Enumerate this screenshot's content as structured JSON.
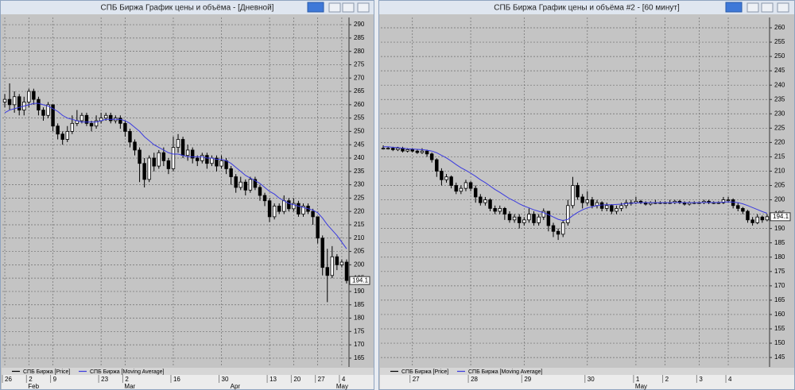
{
  "chart_data": [
    {
      "type": "candlestick",
      "title": "СПБ Биржа График цены и объёма - [Дневной]",
      "categories": [
        "26",
        null,
        null,
        null,
        null,
        "2",
        null,
        null,
        null,
        null,
        "9",
        null,
        null,
        null,
        null,
        null,
        null,
        null,
        null,
        null,
        "23",
        null,
        null,
        null,
        null,
        "2",
        null,
        null,
        null,
        null,
        null,
        null,
        null,
        null,
        null,
        "16",
        null,
        null,
        null,
        null,
        null,
        null,
        null,
        null,
        null,
        "30",
        null,
        null,
        null,
        null,
        null,
        null,
        null,
        null,
        null,
        "13",
        null,
        null,
        null,
        null,
        "20",
        null,
        null,
        null,
        null,
        "27",
        null,
        null,
        null,
        null,
        "4",
        null
      ],
      "months": [
        null,
        null,
        null,
        null,
        null,
        "Feb",
        null,
        null,
        null,
        null,
        null,
        null,
        null,
        null,
        null,
        null,
        null,
        null,
        null,
        null,
        null,
        null,
        null,
        null,
        null,
        "Mar",
        null,
        null,
        null,
        null,
        null,
        null,
        null,
        null,
        null,
        null,
        null,
        null,
        null,
        null,
        null,
        null,
        null,
        null,
        null,
        null,
        null,
        "Apr",
        null,
        null,
        null,
        null,
        null,
        null,
        null,
        null,
        null,
        null,
        null,
        null,
        null,
        null,
        null,
        null,
        null,
        null,
        null,
        null,
        null,
        "May",
        null,
        null
      ],
      "series": [
        {
          "name": "СПБ Биржа [Price]",
          "color": "#000000",
          "open": [
            261,
            262,
            260,
            263,
            258,
            261,
            265,
            262,
            258,
            256,
            260,
            252,
            249,
            247,
            250,
            253,
            254,
            256,
            253,
            252,
            254,
            255,
            256,
            254,
            255,
            253,
            250,
            246,
            243,
            238,
            232,
            240,
            237,
            242,
            239,
            236,
            244,
            247,
            241,
            243,
            240,
            239,
            241,
            238,
            240,
            237,
            239,
            236,
            233,
            229,
            231,
            228,
            232,
            229,
            226,
            224,
            218,
            222,
            220,
            224,
            221,
            223,
            219,
            222,
            220,
            218,
            210,
            199,
            196,
            203,
            200,
            201
          ],
          "high": [
            264,
            268,
            265,
            264,
            263,
            266,
            266,
            263,
            259,
            261,
            260,
            253,
            250,
            252,
            256,
            258,
            257,
            257,
            254,
            256,
            257,
            257,
            257,
            256,
            256,
            254,
            251,
            247,
            244,
            240,
            241,
            242,
            243,
            244,
            240,
            248,
            249,
            248,
            245,
            244,
            241,
            242,
            242,
            241,
            241,
            241,
            240,
            237,
            234,
            233,
            232,
            233,
            233,
            230,
            227,
            225,
            223,
            223,
            226,
            225,
            225,
            224,
            223,
            223,
            221,
            218,
            211,
            206,
            207,
            204,
            202,
            202
          ],
          "low": [
            259,
            258,
            257,
            256,
            256,
            259,
            260,
            256,
            254,
            255,
            250,
            247,
            245,
            246,
            249,
            252,
            253,
            252,
            250,
            251,
            253,
            254,
            253,
            253,
            251,
            248,
            244,
            241,
            231,
            229,
            231,
            235,
            236,
            237,
            234,
            235,
            242,
            240,
            239,
            238,
            237,
            238,
            236,
            237,
            235,
            236,
            234,
            230,
            227,
            228,
            226,
            227,
            228,
            224,
            222,
            216,
            217,
            219,
            219,
            220,
            220,
            218,
            218,
            219,
            215,
            208,
            196,
            186,
            195,
            198,
            199,
            193
          ],
          "close": [
            262,
            260,
            263,
            258,
            261,
            265,
            262,
            258,
            256,
            260,
            252,
            249,
            247,
            250,
            253,
            254,
            256,
            253,
            252,
            254,
            255,
            256,
            254,
            255,
            253,
            250,
            246,
            243,
            238,
            232,
            240,
            237,
            242,
            239,
            236,
            244,
            247,
            241,
            243,
            240,
            239,
            241,
            238,
            240,
            237,
            239,
            236,
            233,
            229,
            231,
            228,
            232,
            229,
            226,
            224,
            218,
            222,
            220,
            224,
            221,
            223,
            219,
            222,
            220,
            218,
            210,
            199,
            196,
            203,
            200,
            201,
            194.1
          ]
        },
        {
          "name": "СПБ Биржа [Moving Average]",
          "color": "#3a3adf",
          "values": [
            257,
            258,
            258.5,
            259,
            259.5,
            260,
            260.5,
            260.5,
            260,
            259.5,
            258.5,
            257.5,
            256,
            255,
            254.5,
            254,
            253.5,
            253.5,
            253.5,
            253.5,
            254,
            254.5,
            254.5,
            254.5,
            254.5,
            254,
            253,
            251.5,
            250,
            248,
            246.5,
            245,
            244,
            243,
            242,
            241.5,
            241.5,
            241,
            240.5,
            240.5,
            240.5,
            240.5,
            240,
            240,
            239.5,
            239.5,
            239,
            238,
            236.5,
            235,
            233.5,
            232.5,
            231.5,
            230.5,
            229,
            227.5,
            226.5,
            225,
            224,
            223,
            222.5,
            222,
            221.5,
            221,
            220.5,
            219.5,
            217.5,
            215,
            213,
            211,
            208.5,
            206
          ]
        }
      ],
      "ylim": [
        161.7,
        292.7
      ],
      "yticks": [
        165,
        170,
        175,
        180,
        185,
        190,
        195,
        200,
        205,
        210,
        215,
        220,
        225,
        230,
        235,
        240,
        245,
        250,
        255,
        260,
        265,
        270,
        275,
        280,
        285,
        290
      ],
      "grid": true
    },
    {
      "type": "candlestick",
      "title": "СПБ Биржа График цены и объёма #2 - [60 минут]",
      "categories": [
        null,
        null,
        null,
        null,
        null,
        null,
        "27",
        null,
        null,
        null,
        null,
        null,
        null,
        null,
        null,
        null,
        null,
        null,
        "28",
        null,
        null,
        null,
        null,
        null,
        null,
        null,
        null,
        null,
        null,
        "29",
        null,
        null,
        null,
        null,
        null,
        null,
        null,
        null,
        null,
        null,
        null,
        null,
        "30",
        null,
        null,
        null,
        null,
        null,
        null,
        null,
        null,
        null,
        "1",
        null,
        null,
        null,
        null,
        null,
        "2",
        null,
        null,
        null,
        null,
        null,
        null,
        "3",
        null,
        null,
        null,
        null,
        null,
        "4",
        null,
        null,
        null,
        null,
        null,
        null,
        null,
        null
      ],
      "months": [
        null,
        null,
        null,
        null,
        null,
        null,
        null,
        null,
        null,
        null,
        null,
        null,
        null,
        null,
        null,
        null,
        null,
        null,
        null,
        null,
        null,
        null,
        null,
        null,
        null,
        null,
        null,
        null,
        null,
        null,
        null,
        null,
        null,
        null,
        null,
        null,
        null,
        null,
        null,
        null,
        null,
        null,
        null,
        null,
        null,
        null,
        null,
        null,
        null,
        null,
        null,
        null,
        "May",
        null,
        null,
        null,
        null,
        null,
        null,
        null,
        null,
        null,
        null,
        null,
        null,
        null,
        null,
        null,
        null,
        null,
        null,
        null,
        null,
        null,
        null,
        null,
        null,
        null,
        null,
        null
      ],
      "series": [
        {
          "name": "СПБ Биржа [Price]",
          "color": "#000000",
          "open": [
            218,
            218,
            218,
            217.5,
            218,
            217,
            217.5,
            217,
            216.5,
            217,
            216,
            214,
            210,
            207,
            208,
            205,
            203,
            204,
            206,
            204,
            201,
            199,
            200,
            197,
            196,
            197,
            195,
            193,
            194,
            192,
            193,
            195,
            192,
            194,
            196,
            191,
            189,
            188,
            192,
            198,
            205,
            201,
            199,
            200,
            198,
            199,
            197,
            198,
            196,
            197,
            198,
            199,
            199,
            199.5,
            199,
            198.5,
            199,
            199,
            199,
            199,
            199,
            199.5,
            199,
            198.5,
            199,
            199,
            199,
            199.5,
            199,
            199,
            199,
            200,
            200,
            198,
            197,
            196,
            193,
            192,
            194,
            193
          ],
          "high": [
            219,
            218.5,
            218.5,
            218.5,
            218.5,
            218,
            218,
            217.5,
            218,
            217.5,
            216.5,
            214.5,
            211,
            209,
            208.5,
            206,
            205,
            207,
            206.5,
            205,
            202,
            201,
            200.5,
            198,
            198,
            197.5,
            196,
            195,
            195,
            194,
            197,
            196,
            195,
            197,
            196,
            192,
            190,
            193,
            200,
            208,
            206,
            202,
            203,
            201,
            200,
            199.5,
            199,
            198.5,
            198,
            199,
            200,
            200,
            201,
            200,
            199.5,
            199.5,
            200,
            199.5,
            199.5,
            200,
            200,
            200,
            199.5,
            199.5,
            199.5,
            199.5,
            200,
            200,
            199.5,
            199.5,
            201,
            201,
            200.5,
            199,
            197.5,
            196.5,
            194,
            195,
            194.5,
            195
          ],
          "low": [
            217.5,
            217.5,
            217,
            217,
            216.5,
            216.5,
            216.5,
            216,
            216,
            215,
            213,
            208,
            205,
            206,
            204,
            202,
            202,
            203,
            203,
            199,
            198,
            198,
            196,
            195,
            195,
            193,
            192,
            192,
            190,
            191,
            192,
            191,
            191,
            193,
            189,
            187,
            186,
            187,
            191,
            197,
            200,
            197,
            198,
            197,
            197,
            196,
            196,
            195,
            195,
            196,
            197,
            198,
            198.5,
            198.5,
            198,
            198,
            198.5,
            198.5,
            198.5,
            198.5,
            198.5,
            198.5,
            198,
            198,
            198.5,
            198.5,
            198.5,
            198.5,
            198.5,
            198.5,
            198.5,
            199,
            197,
            196,
            195,
            192,
            191,
            191.5,
            192,
            192.5
          ],
          "close": [
            218,
            218,
            217.5,
            218,
            217,
            217.5,
            217,
            216.5,
            217,
            216,
            214,
            210,
            207,
            208,
            205,
            203,
            204,
            206,
            204,
            201,
            199,
            200,
            197,
            196,
            197,
            195,
            193,
            194,
            192,
            193,
            195,
            192,
            194,
            196,
            191,
            189,
            188,
            192,
            198,
            205,
            201,
            199,
            200,
            198,
            199,
            197,
            198,
            196,
            197,
            198,
            199,
            199,
            199.5,
            199,
            198.5,
            199,
            199,
            199,
            199,
            199,
            199.5,
            199,
            198.5,
            199,
            199,
            199,
            199.5,
            199,
            199,
            199,
            200,
            200,
            198,
            197,
            196,
            193,
            192,
            194,
            193,
            194.1
          ]
        },
        {
          "name": "СПБ Биржа [Moving Average]",
          "color": "#3a3adf",
          "values": [
            218.5,
            218.5,
            218.3,
            218.2,
            218,
            217.8,
            217.7,
            217.6,
            217.5,
            217.3,
            217,
            216.4,
            215.5,
            214.6,
            213.5,
            212.3,
            211.2,
            210.3,
            209.3,
            208.2,
            207,
            206,
            204.8,
            203.6,
            202.6,
            201.5,
            200.4,
            199.6,
            198.6,
            197.8,
            197.2,
            196.5,
            196,
            195.5,
            194.8,
            194,
            193.2,
            192.8,
            193.2,
            194.5,
            195.6,
            196.5,
            197.2,
            197.6,
            198,
            198.2,
            198.3,
            198.3,
            198.4,
            198.5,
            198.7,
            198.8,
            198.9,
            199,
            199,
            199,
            199,
            199,
            199,
            199,
            199.1,
            199.1,
            199,
            199,
            199,
            199,
            199.1,
            199.1,
            199.1,
            199.1,
            199.2,
            199.3,
            199.2,
            199,
            198.6,
            198,
            197.3,
            196.6,
            195.9,
            195.3
          ]
        }
      ],
      "ylim": [
        141.7,
        263.6
      ],
      "yticks": [
        145,
        150,
        155,
        160,
        165,
        170,
        175,
        180,
        185,
        190,
        195,
        200,
        205,
        210,
        215,
        220,
        225,
        230,
        235,
        240,
        245,
        250,
        255,
        260
      ],
      "grid": true
    }
  ]
}
